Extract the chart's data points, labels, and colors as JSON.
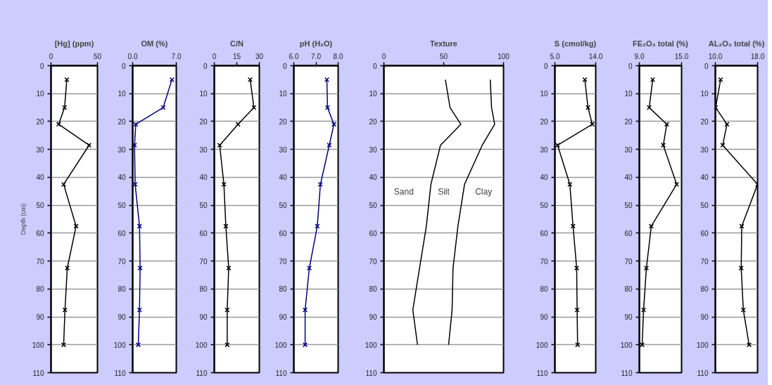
{
  "chart_data": [
    {
      "type": "line",
      "title": "[Hg] (ppm)",
      "ylabel": "Depth (cm)",
      "xlim": [
        0,
        50
      ],
      "xticks": [
        0,
        50
      ],
      "ylim": [
        110,
        0
      ],
      "yticks": [
        0,
        10,
        20,
        30,
        40,
        50,
        60,
        70,
        80,
        90,
        100,
        110
      ],
      "grid": "y",
      "marker": "cross",
      "line_style": "solid",
      "series": [
        {
          "color": "#000000",
          "x": [
            17,
            14.6,
            8.2,
            41,
            13.6,
            27,
            17.5,
            15,
            13.6
          ],
          "values": [
            5,
            15,
            21,
            28.5,
            42.5,
            57.5,
            72.5,
            87.5,
            100
          ]
        }
      ]
    },
    {
      "type": "line",
      "title": "OM (%)",
      "xlim": [
        0,
        7
      ],
      "xticks": [
        {
          "value": 0,
          "label": "0.0"
        },
        {
          "value": 7,
          "label": "7.0"
        }
      ],
      "ylim": [
        110,
        0
      ],
      "yticks": [
        0,
        10,
        20,
        30,
        40,
        50,
        60,
        70,
        80,
        90,
        100,
        110
      ],
      "grid": "y",
      "marker": "cross",
      "line_style": "solid",
      "series": [
        {
          "color": "#000080",
          "x": [
            6.3,
            4.9,
            0.5,
            0.3,
            0.4,
            1.1,
            1.2,
            1.1,
            0.9
          ],
          "values": [
            5,
            15,
            21,
            28.5,
            42.5,
            57.5,
            72.5,
            87.5,
            100
          ]
        }
      ]
    },
    {
      "type": "line",
      "title": "C/N",
      "xlim": [
        0,
        30
      ],
      "xticks": [
        0,
        15,
        30
      ],
      "ylim": [
        110,
        0
      ],
      "yticks": [
        0,
        10,
        20,
        30,
        40,
        50,
        60,
        70,
        80,
        90,
        100,
        110
      ],
      "grid": "y",
      "marker": "cross",
      "line_style": "solid",
      "series": [
        {
          "color": "#000000",
          "x": [
            23.9,
            26.4,
            15.8,
            3.6,
            6.4,
            7.7,
            9.6,
            8.6,
            8.6
          ],
          "values": [
            5,
            15,
            21,
            28.5,
            42.5,
            57.5,
            72.5,
            87.5,
            100
          ]
        }
      ]
    },
    {
      "type": "line",
      "title": "pH (H₂O)",
      "xlim": [
        6,
        8
      ],
      "xticks": [
        {
          "value": 6,
          "label": "6.0"
        },
        {
          "value": 7,
          "label": "7.0"
        },
        {
          "value": 8,
          "label": "8.0"
        }
      ],
      "ylim": [
        110,
        0
      ],
      "yticks": [
        0,
        10,
        20,
        30,
        40,
        50,
        60,
        70,
        80,
        90,
        100,
        110
      ],
      "grid": "y",
      "marker": "cross",
      "line_style": "solid",
      "series": [
        {
          "color": "#000080",
          "x": [
            7.49,
            7.52,
            7.81,
            7.6,
            7.2,
            7.06,
            6.7,
            6.51,
            6.51
          ],
          "values": [
            5,
            15,
            21,
            28.5,
            42.5,
            57.5,
            72.5,
            87.5,
            100
          ]
        }
      ]
    },
    {
      "type": "line",
      "title": "Texture",
      "xlim": [
        0,
        100
      ],
      "xticks": [
        0,
        50,
        100
      ],
      "ylim": [
        110,
        0
      ],
      "yticks": [
        0,
        10,
        20,
        30,
        40,
        50,
        60,
        70,
        80,
        90,
        100,
        110
      ],
      "grid": "y",
      "marker": "none",
      "line_style": "solid",
      "series": [
        {
          "color": "#000000",
          "x": [
            51.4,
            55.3,
            64.3,
            47.3,
            39.3,
            35.5,
            29.8,
            24.2,
            28.1
          ],
          "values": [
            5,
            15,
            21,
            28.5,
            42.5,
            57.5,
            72.5,
            87.5,
            100
          ]
        },
        {
          "color": "#000000",
          "x": [
            88.9,
            90,
            92.6,
            82.2,
            67.4,
            61.9,
            57.8,
            57,
            54.1
          ],
          "values": [
            5,
            15,
            21,
            28.5,
            42.5,
            57.5,
            72.5,
            87.5,
            100
          ]
        }
      ],
      "annotations": [
        "Sand",
        "Silt",
        "Clay"
      ]
    },
    {
      "type": "line",
      "title": "S (cmol/kg)",
      "xlim": [
        5,
        14
      ],
      "xticks": [
        {
          "value": 5,
          "label": "5.0"
        },
        {
          "value": 14,
          "label": "14.0"
        }
      ],
      "ylim": [
        110,
        0
      ],
      "yticks": [
        0,
        10,
        20,
        30,
        40,
        50,
        60,
        70,
        80,
        90,
        100,
        110
      ],
      "grid": "y",
      "marker": "cross",
      "line_style": "solid",
      "series": [
        {
          "color": "#000000",
          "x": [
            11.6,
            12.3,
            13.25,
            5.6,
            8.3,
            9.0,
            9.8,
            9.9,
            10.0
          ],
          "values": [
            5,
            15,
            21,
            28.5,
            42.5,
            57.5,
            72.5,
            87.5,
            100
          ]
        }
      ]
    },
    {
      "type": "line",
      "title": "FE₂O₃ total (%)",
      "xlim": [
        9,
        15
      ],
      "xticks": [
        {
          "value": 9,
          "label": "9.0"
        },
        {
          "value": 15,
          "label": "15.0"
        }
      ],
      "ylim": [
        110,
        0
      ],
      "yticks": [
        0,
        10,
        20,
        30,
        40,
        50,
        60,
        70,
        80,
        90,
        100,
        110
      ],
      "grid": "y",
      "marker": "cross",
      "line_style": "solid",
      "series": [
        {
          "color": "#000000",
          "x": [
            10.9,
            10.4,
            12.9,
            12.4,
            14.3,
            10.7,
            10.0,
            9.6,
            9.4
          ],
          "values": [
            5,
            15,
            21,
            28.5,
            42.5,
            57.5,
            72.5,
            87.5,
            100
          ]
        }
      ]
    },
    {
      "type": "line",
      "title": "AL₂O₃ total (%)",
      "xlim": [
        10,
        18
      ],
      "xticks": [
        {
          "value": 10,
          "label": "10.0"
        },
        {
          "value": 18,
          "label": "18.0"
        }
      ],
      "ylim": [
        110,
        0
      ],
      "yticks": [
        0,
        10,
        20,
        30,
        40,
        50,
        60,
        70,
        80,
        90,
        100,
        110
      ],
      "grid": "y",
      "marker": "cross",
      "line_style": "solid",
      "series": [
        {
          "color": "#000000",
          "x": [
            11.0,
            10.05,
            12.2,
            11.4,
            18.0,
            15.0,
            14.9,
            15.3,
            16.4
          ],
          "values": [
            5,
            15,
            21,
            28.5,
            42.5,
            57.5,
            72.5,
            87.5,
            100
          ]
        }
      ]
    }
  ]
}
